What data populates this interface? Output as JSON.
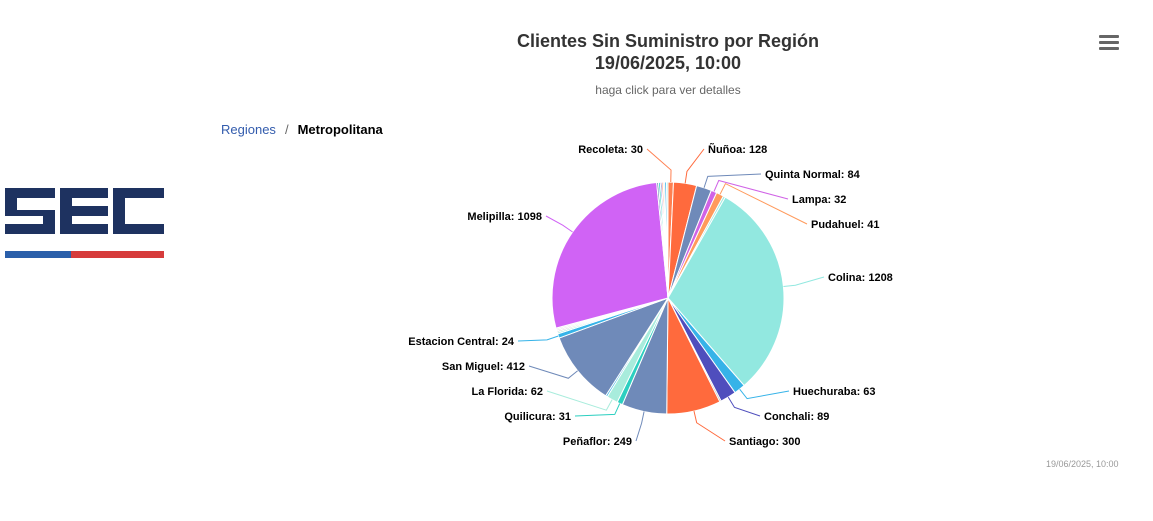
{
  "chart_data": {
    "type": "pie",
    "title": "Clientes Sin Suministro por Región\n19/06/2025, 10:00",
    "subtitle": "haga click para ver detalles",
    "credit": "19/06/2025, 10:00",
    "slices": [
      {
        "name": "Recoleta",
        "value": 30,
        "color": "#ff7f50",
        "label": "Recoleta: 30"
      },
      {
        "name": "Ñuñoa",
        "value": 128,
        "color": "#ff6a3d",
        "label": "Ñuñoa: 128"
      },
      {
        "name": "Quinta Normal",
        "value": 84,
        "color": "#6f8ab9",
        "label": "Quinta Normal: 84"
      },
      {
        "name": "Lampa",
        "value": 32,
        "color": "#d063e6",
        "label": "Lampa: 32"
      },
      {
        "name": "Pudahuel",
        "value": 41,
        "color": "#ff9a5c",
        "label": "Pudahuel: 41"
      },
      {
        "name": "",
        "value": 12,
        "color": "#9de8de",
        "label": ""
      },
      {
        "name": "Colina",
        "value": 1208,
        "color": "#92e8e0",
        "label": "Colina: 1208"
      },
      {
        "name": "Huechuraba",
        "value": 63,
        "color": "#36b3e8",
        "label": "Huechuraba: 63"
      },
      {
        "name": "Conchali",
        "value": 89,
        "color": "#4f4ebd",
        "label": "Conchali: 89"
      },
      {
        "name": "",
        "value": 8,
        "color": "#8a8a8a",
        "label": ""
      },
      {
        "name": "Santiago",
        "value": 300,
        "color": "#ff6a3d",
        "label": "Santiago: 300"
      },
      {
        "name": "Peñaflor",
        "value": 249,
        "color": "#6f8ab9",
        "label": "Peñaflor: 249"
      },
      {
        "name": "Quilicura",
        "value": 31,
        "color": "#2ccfc0",
        "label": "Quilicura: 31"
      },
      {
        "name": "La Florida",
        "value": 62,
        "color": "#a8ecdc",
        "label": "La Florida: 62"
      },
      {
        "name": "",
        "value": 10,
        "color": "#36b3e8",
        "label": ""
      },
      {
        "name": "San Miguel",
        "value": 412,
        "color": "#6f8ab9",
        "label": "San Miguel: 412"
      },
      {
        "name": "Estacion Central",
        "value": 24,
        "color": "#36b3e8",
        "label": "Estacion Central: 24"
      },
      {
        "name": "",
        "value": 9,
        "color": "#a8ecdc",
        "label": ""
      },
      {
        "name": "",
        "value": 8,
        "color": "#cfcfcf",
        "label": ""
      },
      {
        "name": "",
        "value": 8,
        "color": "#d8d8d8",
        "label": ""
      },
      {
        "name": "",
        "value": 8,
        "color": "#e2e2e2",
        "label": ""
      },
      {
        "name": "Melipilla",
        "value": 1098,
        "color": "#d063f5",
        "label": "Melipilla: 1098"
      },
      {
        "name": "",
        "value": 10,
        "color": "#6f8ab9",
        "label": ""
      },
      {
        "name": "",
        "value": 10,
        "color": "#2ccfc0",
        "label": ""
      },
      {
        "name": "",
        "value": 8,
        "color": "#4f4ebd",
        "label": ""
      },
      {
        "name": "",
        "value": 8,
        "color": "#ff6a3d",
        "label": ""
      },
      {
        "name": "",
        "value": 8,
        "color": "#e0e0e0",
        "label": ""
      },
      {
        "name": "",
        "value": 10,
        "color": "#36b3e8",
        "label": ""
      },
      {
        "name": "",
        "value": 8,
        "color": "#a8ecdc",
        "label": ""
      }
    ]
  },
  "breadcrumb": {
    "parent": "Regiones",
    "separator": "/",
    "current": "Metropolitana"
  },
  "logo": {
    "text": "SEC",
    "colors": {
      "letters": "#1e3260",
      "stripe_left": "#2a5faa",
      "stripe_right": "#d63b3b"
    }
  },
  "menu": {
    "icon": "hamburger-menu-icon"
  }
}
